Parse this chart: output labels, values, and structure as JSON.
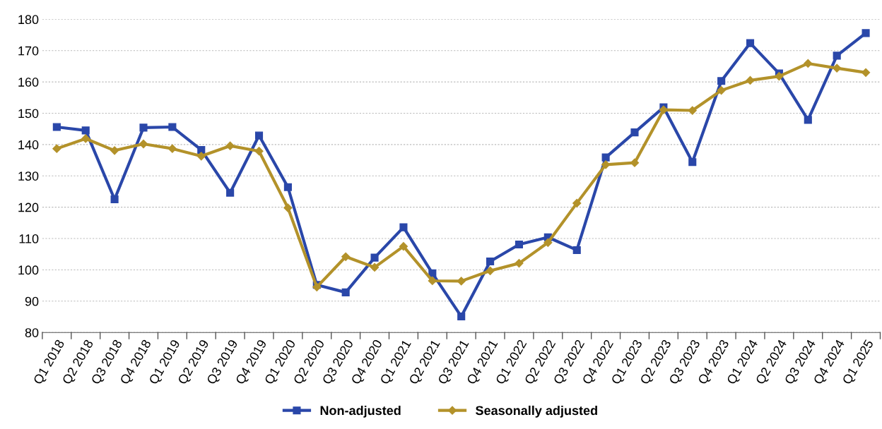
{
  "chart_data": {
    "type": "line",
    "categories": [
      "Q1 2018",
      "Q2 2018",
      "Q3 2018",
      "Q4 2018",
      "Q1 2019",
      "Q2 2019",
      "Q3 2019",
      "Q4 2019",
      "Q1 2020",
      "Q2 2020",
      "Q3 2020",
      "Q4 2020",
      "Q1 2021",
      "Q2 2021",
      "Q3 2021",
      "Q4 2021",
      "Q1 2022",
      "Q2 2022",
      "Q3 2022",
      "Q4 2022",
      "Q1 2023",
      "Q2 2023",
      "Q3 2023",
      "Q4 2023",
      "Q1 2024",
      "Q2 2024",
      "Q3 2024",
      "Q4 2024",
      "Q1 2025"
    ],
    "series": [
      {
        "name": "Non-adjusted",
        "color": "#2a47a9",
        "marker": "square",
        "values": [
          145.6,
          144.5,
          122.5,
          145.4,
          145.6,
          138.3,
          124.6,
          142.9,
          126.4,
          95.2,
          92.8,
          103.9,
          113.6,
          98.9,
          85.1,
          102.7,
          108.1,
          110.4,
          106.3,
          135.9,
          143.9,
          151.9,
          134.4,
          160.3,
          172.4,
          162.7,
          147.9,
          168.4,
          175.6
        ]
      },
      {
        "name": "Seasonally adjusted",
        "color": "#b3922a",
        "marker": "diamond",
        "values": [
          138.7,
          141.9,
          138.1,
          140.2,
          138.7,
          136.3,
          139.6,
          137.9,
          119.8,
          94.5,
          104.2,
          100.8,
          107.5,
          96.5,
          96.4,
          99.7,
          102.1,
          108.7,
          121.3,
          133.6,
          134.2,
          151.1,
          150.9,
          157.3,
          160.5,
          161.8,
          165.9,
          164.4,
          163.0
        ]
      }
    ],
    "ylim": [
      80,
      180
    ],
    "yticks": [
      80,
      90,
      100,
      110,
      120,
      130,
      140,
      150,
      160,
      170,
      180
    ],
    "grid": "y",
    "legend": "bottom",
    "line_style": "solid"
  }
}
